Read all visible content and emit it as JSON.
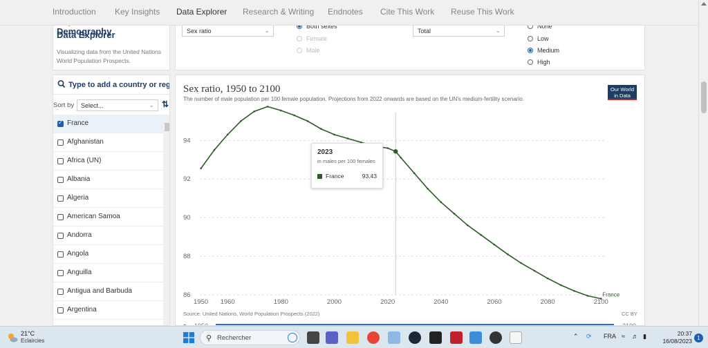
{
  "nav": {
    "items": [
      "Introduction",
      "Key Insights",
      "Data Explorer",
      "Research & Writing",
      "Endnotes",
      "Cite This Work",
      "Reuse This Work"
    ],
    "active": "Data Explorer"
  },
  "explorer": {
    "title_line1": "Population & Demography",
    "title_line2": "Data Explorer",
    "description_line1": "Visualizing data from the United Nations",
    "description_line2": "World Population Prospects."
  },
  "controls": {
    "metric_select": "Sex ratio",
    "sex_options": [
      {
        "label": "Both sexes",
        "checked": true,
        "disabled": false
      },
      {
        "label": "Female",
        "checked": false,
        "disabled": true
      },
      {
        "label": "Male",
        "checked": false,
        "disabled": true
      }
    ],
    "age_select": "Total",
    "projection_options": [
      {
        "label": "None",
        "checked": false
      },
      {
        "label": "Low",
        "checked": false
      },
      {
        "label": "Medium",
        "checked": true
      },
      {
        "label": "High",
        "checked": false
      }
    ]
  },
  "sidebar": {
    "search_placeholder": "Type to add a country or regio",
    "sort_label": "Sort by",
    "sort_value": "Select...",
    "countries": [
      {
        "name": "France",
        "selected": true
      },
      {
        "name": "Afghanistan",
        "selected": false
      },
      {
        "name": "Africa (UN)",
        "selected": false
      },
      {
        "name": "Albania",
        "selected": false
      },
      {
        "name": "Algeria",
        "selected": false
      },
      {
        "name": "American Samoa",
        "selected": false
      },
      {
        "name": "Andorra",
        "selected": false
      },
      {
        "name": "Angola",
        "selected": false
      },
      {
        "name": "Anguilla",
        "selected": false
      },
      {
        "name": "Antigua and Barbuda",
        "selected": false
      },
      {
        "name": "Argentina",
        "selected": false
      }
    ]
  },
  "chart": {
    "logo_line1": "Our World",
    "logo_line2": "in Data",
    "source": "Source: United Nations, World Population Prospects (2022)",
    "license": "CC BY",
    "timeline_start": "1950",
    "timeline_end": "2100"
  },
  "chart_data": {
    "type": "line",
    "title": "Sex ratio, 1950 to 2100",
    "subtitle": "The number of male population per 100 female population. Projections from 2022 onwards are based on the UN's medium-fertility scenario.",
    "xlim": [
      1947,
      2102
    ],
    "ylim": [
      86,
      95.8
    ],
    "x_ticks": [
      1950,
      1960,
      1980,
      2000,
      2020,
      2040,
      2060,
      2080,
      2100
    ],
    "y_ticks": [
      86,
      88,
      90,
      92,
      94
    ],
    "grid": true,
    "series": [
      {
        "name": "France",
        "color": "#2d5a27",
        "points": [
          [
            1950,
            92.55
          ],
          [
            1955,
            93.5
          ],
          [
            1960,
            94.3
          ],
          [
            1965,
            95.0
          ],
          [
            1970,
            95.5
          ],
          [
            1975,
            95.75
          ],
          [
            1980,
            95.55
          ],
          [
            1985,
            95.3
          ],
          [
            1990,
            95.0
          ],
          [
            1995,
            94.6
          ],
          [
            2000,
            94.3
          ],
          [
            2005,
            94.1
          ],
          [
            2010,
            93.9
          ],
          [
            2015,
            93.7
          ],
          [
            2020,
            93.6
          ],
          [
            2023,
            93.43
          ],
          [
            2025,
            93.1
          ],
          [
            2030,
            92.3
          ],
          [
            2035,
            91.5
          ],
          [
            2040,
            90.8
          ],
          [
            2045,
            90.2
          ],
          [
            2050,
            89.6
          ],
          [
            2055,
            89.1
          ],
          [
            2060,
            88.6
          ],
          [
            2065,
            88.1
          ],
          [
            2070,
            87.65
          ],
          [
            2075,
            87.25
          ],
          [
            2080,
            86.85
          ],
          [
            2085,
            86.5
          ],
          [
            2090,
            86.2
          ],
          [
            2095,
            85.95
          ],
          [
            2100,
            85.8
          ]
        ]
      }
    ],
    "tooltip": {
      "year": "2023",
      "unit": "in males per 100 females",
      "entity": "France",
      "value": "93.43"
    }
  },
  "taskbar": {
    "temperature": "21°C",
    "weather": "Eclaircies",
    "search_label": "Rechercher",
    "language": "FRA",
    "time": "20:37",
    "date": "16/08/2023",
    "notifications": "1"
  }
}
